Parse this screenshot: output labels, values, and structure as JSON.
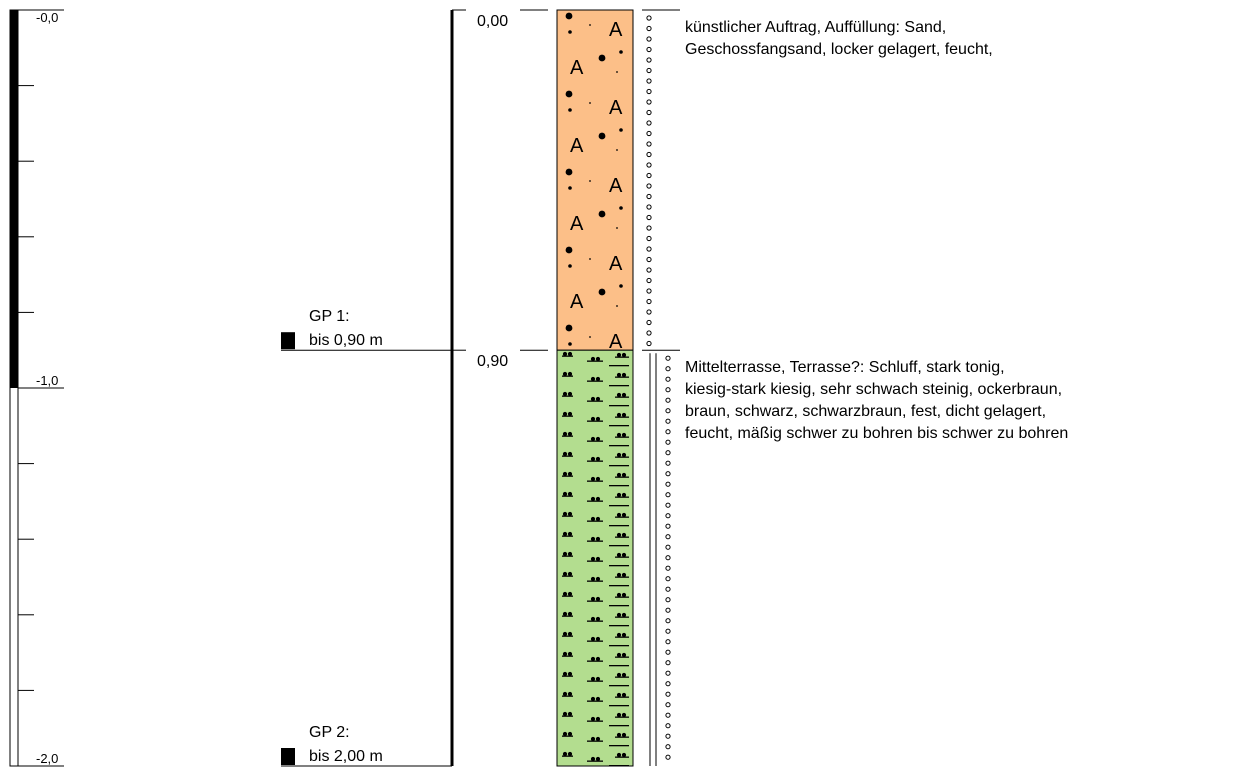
{
  "scale": {
    "labels": [
      {
        "value": 0.0,
        "text": "-0,0"
      },
      {
        "value": 1.0,
        "text": "-1,0"
      },
      {
        "value": 2.0,
        "text": "-2,0"
      }
    ],
    "minor_ticks": [
      0.2,
      0.4,
      0.6,
      0.8,
      1.2,
      1.4,
      1.6,
      1.8
    ],
    "filled_to": 1.0,
    "range": [
      0.0,
      2.0
    ]
  },
  "samples": [
    {
      "name": "GP 1:",
      "depth_text": "bis 0,90 m",
      "depth": 0.9
    },
    {
      "name": "GP 2:",
      "depth_text": "bis 2,00 m",
      "depth": 2.0
    }
  ],
  "layers": [
    {
      "top": 0.0,
      "bottom": 0.9,
      "top_label": "0,00",
      "fill": "#fcbf88",
      "pattern": "fill-sand",
      "description": [
        "künstlicher Auftrag, Auffüllung: Sand,",
        "Geschossfangsand, locker gelagert, feucht,"
      ],
      "moisture_symbol": "circle-column"
    },
    {
      "top": 0.9,
      "bottom": 2.0,
      "top_label": "0,90",
      "fill": "#b3dd8f",
      "pattern": "silt-clay-gravel",
      "description": [
        "Mittelterrasse, Terrasse?: Schluff, stark tonig,",
        "kiesig-stark kiesig, sehr schwach steinig, ockerbraun,",
        "braun, schwarz, schwarzbraun, fest, dicht gelagert,",
        "feucht, mäßig schwer zu bohren bis schwer zu bohren"
      ],
      "moisture_symbol": "circle-column-with-double-line"
    }
  ]
}
